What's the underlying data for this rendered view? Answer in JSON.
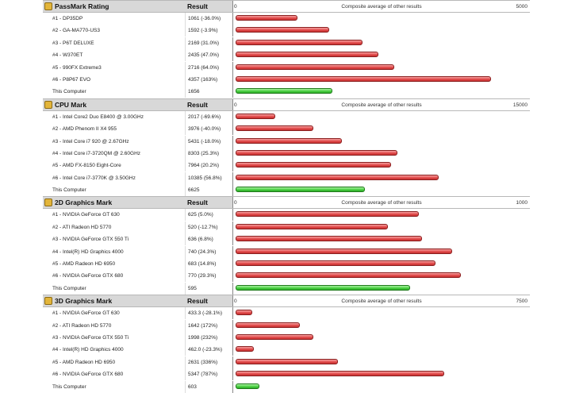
{
  "colors": {
    "competitor_bar": "#e04848",
    "this_computer_bar": "#48d040",
    "header_bg": "#d8d8d8"
  },
  "sections": [
    {
      "title": "PassMark Rating",
      "result_header": "Result",
      "axis_min": "0",
      "axis_caption": "Composite average of other results",
      "axis_max_label": "5000",
      "scale_max": 5000,
      "rows": [
        {
          "name": "#1 - DP35DP",
          "result": "1061 (-36.0%)",
          "value": 1061,
          "self": false
        },
        {
          "name": "#2 - GA-MA770-US3",
          "result": "1592 (-3.9%)",
          "value": 1592,
          "self": false
        },
        {
          "name": "#3 - P6T DELUXE",
          "result": "2169 (31.0%)",
          "value": 2169,
          "self": false
        },
        {
          "name": "#4 - W370ET",
          "result": "2435 (47.0%)",
          "value": 2435,
          "self": false
        },
        {
          "name": "#5 - 990FX Extreme3",
          "result": "2716 (64.0%)",
          "value": 2716,
          "self": false
        },
        {
          "name": "#6 - P8P67 EVO",
          "result": "4357 (163%)",
          "value": 4357,
          "self": false
        },
        {
          "name": "This Computer",
          "result": "1656",
          "value": 1656,
          "self": true
        }
      ]
    },
    {
      "title": "CPU Mark",
      "result_header": "Result",
      "axis_min": "0",
      "axis_caption": "Composite average of other results",
      "axis_max_label": "15000",
      "scale_max": 15000,
      "rows": [
        {
          "name": "#1 - Intel Core2 Duo E8400 @ 3.00GHz",
          "result": "2017 (-69.6%)",
          "value": 2017,
          "self": false
        },
        {
          "name": "#2 - AMD Phenom II X4 955",
          "result": "3976 (-40.0%)",
          "value": 3976,
          "self": false
        },
        {
          "name": "#3 - Intel Core i7 920 @ 2.67GHz",
          "result": "5431 (-18.0%)",
          "value": 5431,
          "self": false
        },
        {
          "name": "#4 - Intel Core i7-3720QM @ 2.60GHz",
          "result": "8303 (25.3%)",
          "value": 8303,
          "self": false
        },
        {
          "name": "#5 - AMD FX-8150 Eight-Core",
          "result": "7964 (20.2%)",
          "value": 7964,
          "self": false
        },
        {
          "name": "#6 - Intel Core i7-3770K @ 3.50GHz",
          "result": "10385 (56.8%)",
          "value": 10385,
          "self": false
        },
        {
          "name": "This Computer",
          "result": "6625",
          "value": 6625,
          "self": true
        }
      ]
    },
    {
      "title": "2D Graphics Mark",
      "result_header": "Result",
      "axis_min": "0",
      "axis_caption": "Composite average of other results",
      "axis_max_label": "1000",
      "scale_max": 1000,
      "rows": [
        {
          "name": "#1 - NVIDIA GeForce GT 630",
          "result": "625 (5.0%)",
          "value": 625,
          "self": false
        },
        {
          "name": "#2 - ATI Radeon HD 5770",
          "result": "520 (-12.7%)",
          "value": 520,
          "self": false
        },
        {
          "name": "#3 - NVIDIA GeForce GTX 550 Ti",
          "result": "636 (6.8%)",
          "value": 636,
          "self": false
        },
        {
          "name": "#4 - Intel(R) HD Graphics 4000",
          "result": "740 (24.3%)",
          "value": 740,
          "self": false
        },
        {
          "name": "#5 - AMD Radeon HD 6950",
          "result": "683 (14.8%)",
          "value": 683,
          "self": false
        },
        {
          "name": "#6 - NVIDIA GeForce GTX 680",
          "result": "770 (29.3%)",
          "value": 770,
          "self": false
        },
        {
          "name": "This Computer",
          "result": "595",
          "value": 595,
          "self": true
        }
      ]
    },
    {
      "title": "3D Graphics Mark",
      "result_header": "Result",
      "axis_min": "0",
      "axis_caption": "Composite average of other results",
      "axis_max_label": "7500",
      "scale_max": 7500,
      "rows": [
        {
          "name": "#1 - NVIDIA GeForce GT 630",
          "result": "433.3 (-28.1%)",
          "value": 433.3,
          "self": false
        },
        {
          "name": "#2 - ATI Radeon HD 5770",
          "result": "1642 (172%)",
          "value": 1642,
          "self": false
        },
        {
          "name": "#3 - NVIDIA GeForce GTX 550 Ti",
          "result": "1998 (232%)",
          "value": 1998,
          "self": false
        },
        {
          "name": "#4 - Intel(R) HD Graphics 4000",
          "result": "462.0 (-23.3%)",
          "value": 462.0,
          "self": false
        },
        {
          "name": "#5 - AMD Radeon HD 6950",
          "result": "2631 (336%)",
          "value": 2631,
          "self": false
        },
        {
          "name": "#6 - NVIDIA GeForce GTX 680",
          "result": "5347 (787%)",
          "value": 5347,
          "self": false
        },
        {
          "name": "This Computer",
          "result": "603",
          "value": 603,
          "self": true
        }
      ]
    }
  ]
}
